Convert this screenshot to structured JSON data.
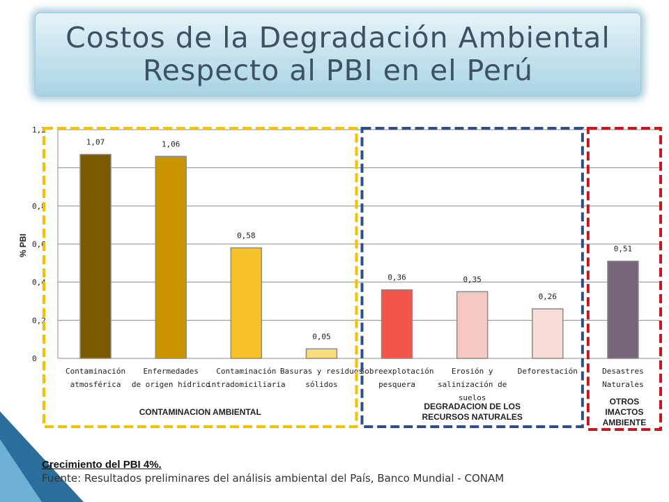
{
  "title": {
    "line1": "Costos de la Degradación Ambiental",
    "line2": "Respecto al PBI en el Perú"
  },
  "chart_data": {
    "type": "bar",
    "ylabel": "% PBI",
    "ylim": [
      0,
      1.2
    ],
    "yticks": [
      "0",
      "0,2",
      "0,4",
      "0,6",
      "0,8",
      "1",
      "1,2"
    ],
    "yticks_visible": [
      "0",
      "0,2",
      "0,4",
      "0,6",
      "0,8",
      "",
      "1,2"
    ],
    "grid": true,
    "categories": [
      [
        "Contaminación",
        "atmosférica"
      ],
      [
        "Enfermedades",
        "de origen hídrico"
      ],
      [
        "Contaminación",
        "intradomiciliaria"
      ],
      [
        "Basuras y residuos",
        "sólidos"
      ],
      [
        "Sobreexplotación",
        "pesquera"
      ],
      [
        "Erosión y",
        "salinización de",
        "suelos"
      ],
      [
        "Deforestación"
      ],
      [
        "Desastres",
        "Naturales"
      ]
    ],
    "values": [
      1.07,
      1.06,
      0.58,
      0.05,
      0.36,
      0.35,
      0.26,
      0.51
    ],
    "value_labels": [
      "1,07",
      "1,06",
      "0,58",
      "0,05",
      "0,36",
      "0,35",
      "0,26",
      "0,51"
    ],
    "bar_colors": [
      "#7a5a00",
      "#c99400",
      "#f7c12a",
      "#f8dd7e",
      "#f2554a",
      "#f6c8c2",
      "#f9dcd8",
      "#77647a"
    ],
    "groups": [
      {
        "lines": [
          "CONTAMINACION AMBIENTAL"
        ],
        "color": "#f2c200",
        "bars": [
          0,
          3
        ]
      },
      {
        "lines": [
          "DEGRADACION DE LOS",
          "RECURSOS NATURALES"
        ],
        "color": "#304f88",
        "bars": [
          4,
          6
        ]
      },
      {
        "lines": [
          "OTROS",
          "IMACTOS",
          "AMBIENTE"
        ],
        "color": "#c9151e",
        "bars": [
          7,
          7
        ]
      }
    ]
  },
  "footer": {
    "growth": "Crecimiento  del PBI 4%.",
    "source": "Fuente: Resultados preliminares del análisis ambiental del País, Banco Mundial - CONAM"
  }
}
